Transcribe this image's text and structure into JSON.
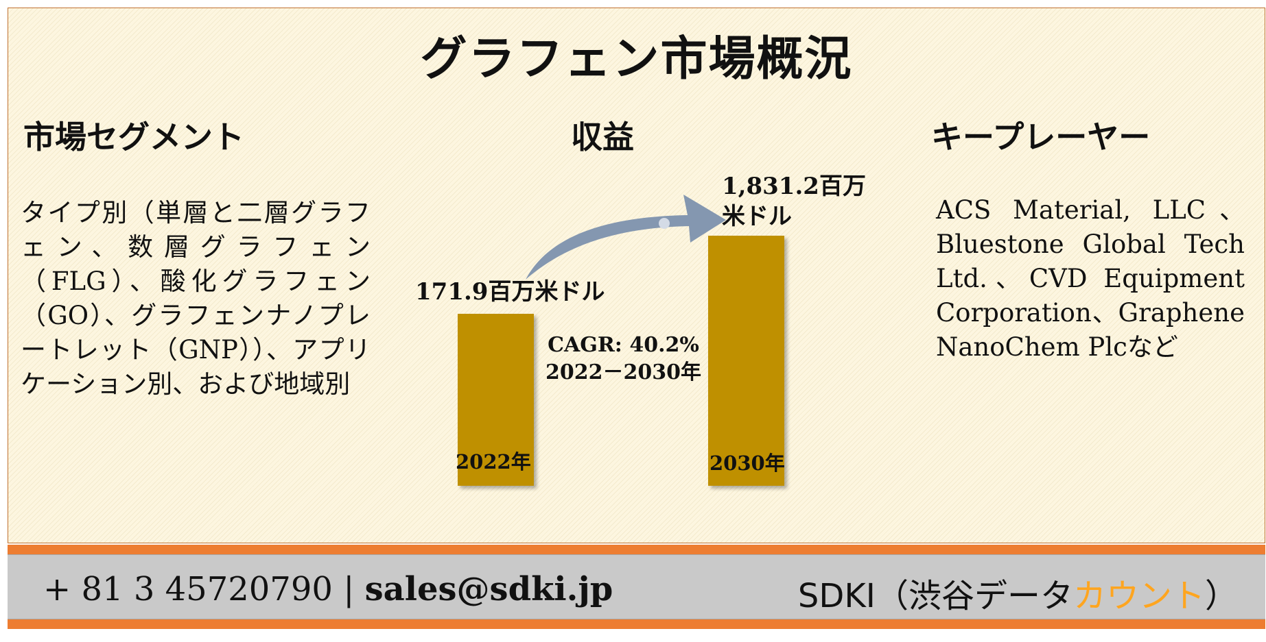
{
  "title": "グラフェン市場概況",
  "segment": {
    "heading": "市場セグメント",
    "text": "タイプ別（単層と二層グラフェン、数層グラフェン（FLG）、酸化グラフェン（GO）、グラフェンナノプレートレット（GNP））、アプリケーション別、および地域別"
  },
  "revenue": {
    "heading": "収益",
    "bar_2022": {
      "year": "2022年",
      "value_label": "171.9百万米ドル"
    },
    "bar_2030": {
      "year": "2030年",
      "value_label": "1,831.2百万米ドル"
    },
    "cagr": "CAGR: 40.2%",
    "cagr_period": "2022－2030年"
  },
  "chart_data": {
    "type": "bar",
    "categories": [
      "2022年",
      "2030年"
    ],
    "values": [
      171.9,
      1831.2
    ],
    "unit": "百万米ドル"
  },
  "key_players": {
    "heading": "キープレーヤー",
    "text": "ACS Material, LLC、Bluestone Global Tech Ltd.、CVD Equipment Corporation、Graphene NanoChem Plcなど"
  },
  "footer": {
    "phone": "+ 81 3 45720790",
    "separator": "|",
    "email": "sales@sdki.jp",
    "brand_main": "SDKI（渋谷データ",
    "brand_accent": "カウント",
    "brand_close": "）"
  },
  "colors": {
    "bar": "#bf9000",
    "arrow": "#8497b0",
    "stripe": "#ed7d31",
    "footer_bg": "#c9c9c9",
    "brand_accent": "#ffa51f"
  }
}
